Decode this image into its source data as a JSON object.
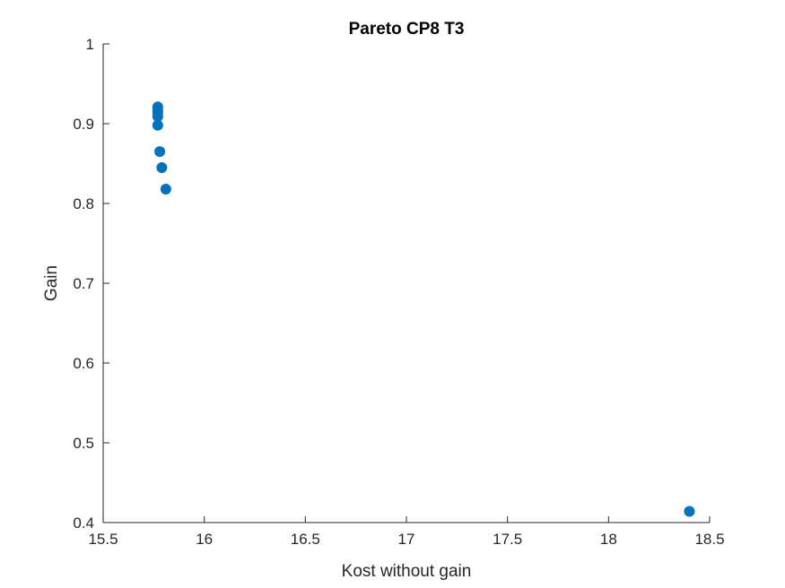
{
  "chart_data": {
    "type": "scatter",
    "title": "Pareto CP8 T3",
    "xlabel": "Kost without gain",
    "ylabel": "Gain",
    "xlim": [
      15.5,
      18.5
    ],
    "ylim": [
      0.4,
      1.0
    ],
    "xticks": [
      15.5,
      16,
      16.5,
      17,
      17.5,
      18,
      18.5
    ],
    "xtick_labels": [
      "15.5",
      "16",
      "16.5",
      "17",
      "17.5",
      "18",
      "18.5"
    ],
    "yticks": [
      0.4,
      0.5,
      0.6,
      0.7,
      0.8,
      0.9,
      1.0
    ],
    "ytick_labels": [
      "0.4",
      "0.5",
      "0.6",
      "0.7",
      "0.8",
      "0.9",
      "1"
    ],
    "grid": false,
    "marker_color": "#0072BD",
    "axis_color": "#262626",
    "points": [
      {
        "x": 15.77,
        "y": 0.921
      },
      {
        "x": 15.77,
        "y": 0.917
      },
      {
        "x": 15.77,
        "y": 0.914
      },
      {
        "x": 15.77,
        "y": 0.909
      },
      {
        "x": 15.77,
        "y": 0.898
      },
      {
        "x": 15.78,
        "y": 0.865
      },
      {
        "x": 15.79,
        "y": 0.845
      },
      {
        "x": 15.81,
        "y": 0.818
      },
      {
        "x": 18.4,
        "y": 0.414
      }
    ]
  }
}
